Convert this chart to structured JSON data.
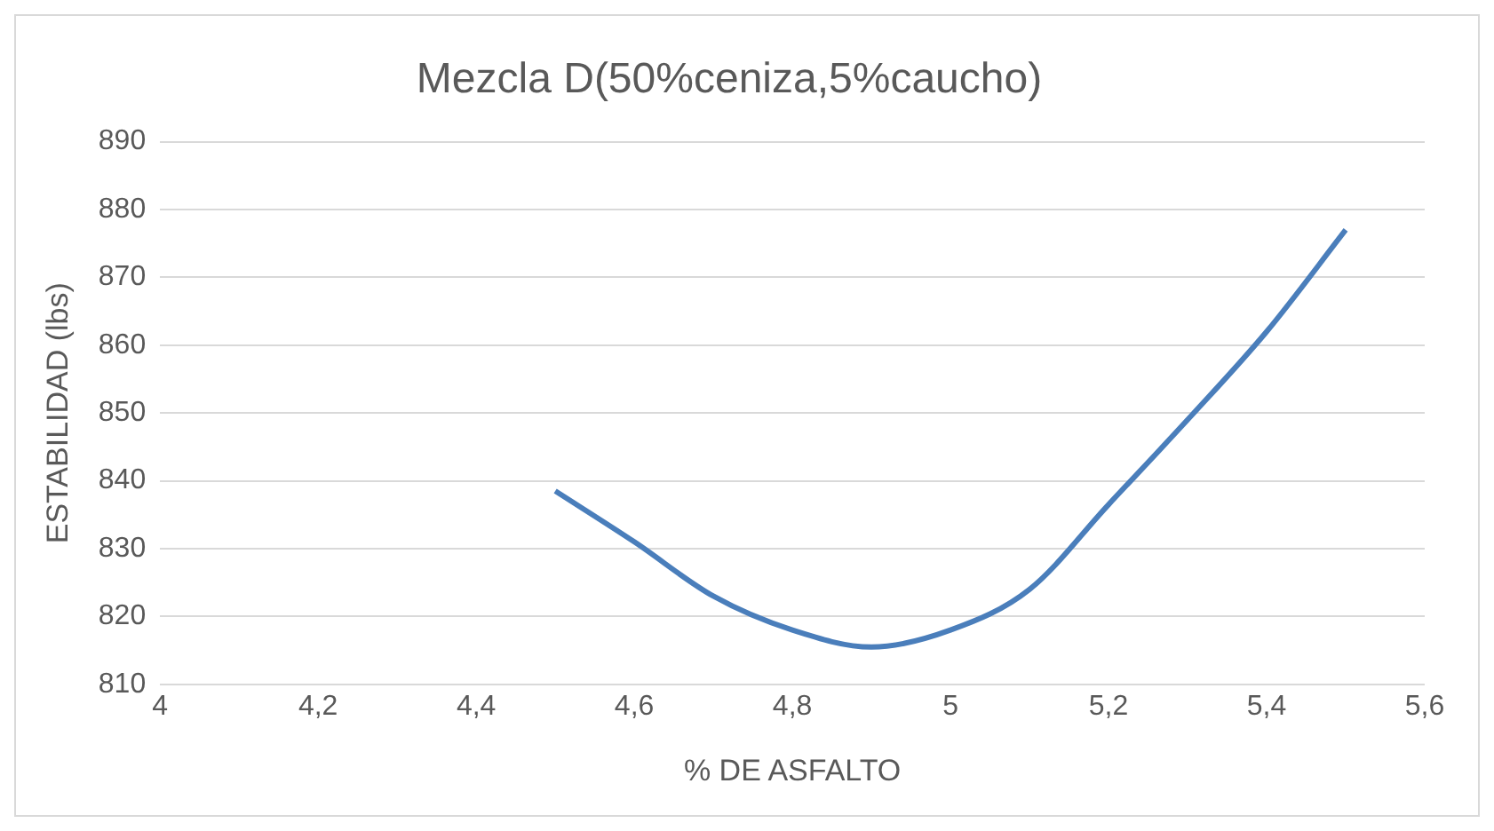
{
  "chart_data": {
    "type": "line",
    "title": "Mezcla D(50%ceniza,5%caucho)",
    "xlabel": "% DE ASFALTO",
    "ylabel": "ESTABILIDAD (lbs)",
    "x": [
      4.5,
      4.6,
      4.7,
      4.8,
      4.9,
      5.0,
      5.1,
      5.2,
      5.3,
      5.4,
      5.5
    ],
    "series": [
      {
        "color": "#4a7ebb",
        "values": [
          838.5,
          831,
          823,
          818,
          815.5,
          818,
          824,
          836.5,
          849,
          862,
          877
        ]
      }
    ],
    "xlim": [
      4,
      5.6
    ],
    "xticks": [
      4,
      {
        "value": 4.2,
        "label": "4,2"
      },
      {
        "value": 4.4,
        "label": "4,4"
      },
      {
        "value": 4.6,
        "label": "4,6"
      },
      {
        "value": 4.8,
        "label": "4,8"
      },
      5,
      {
        "value": 5.2,
        "label": "5,2"
      },
      {
        "value": 5.4,
        "label": "5,4"
      },
      {
        "value": 5.6,
        "label": "5,6"
      }
    ],
    "ylim": [
      810,
      890
    ],
    "yticks": [
      810,
      820,
      830,
      840,
      850,
      860,
      870,
      880,
      890
    ],
    "grid": "y",
    "legend": false,
    "marker": "none",
    "line_style": "solid"
  }
}
